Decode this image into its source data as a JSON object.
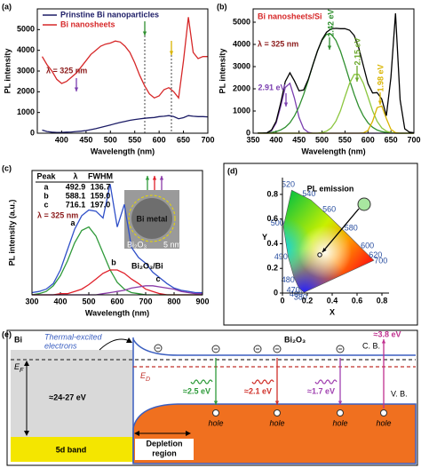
{
  "chart_data": [
    {
      "type": "line",
      "panel_label": "(a)",
      "x_label": "Wavelength (nm)",
      "y_label": "PL intensity",
      "x": [
        360,
        370,
        380,
        390,
        400,
        410,
        420,
        430,
        440,
        450,
        460,
        470,
        480,
        490,
        500,
        510,
        520,
        530,
        540,
        550,
        560,
        570,
        580,
        590,
        600,
        610,
        620,
        630,
        640,
        650,
        660,
        670,
        680,
        690,
        700
      ],
      "xlim": [
        350,
        700
      ],
      "xticks": [
        400,
        450,
        500,
        550,
        600,
        650,
        700
      ],
      "ylim": [
        0,
        6000
      ],
      "yticks": [
        0,
        1000,
        2000,
        3000,
        4000,
        5000
      ],
      "legend": "upper left",
      "series": [
        {
          "name": "Prinstine Bi nanoparticles",
          "color": "#1c1c66",
          "values": [
            150,
            80,
            50,
            40,
            40,
            50,
            60,
            80,
            100,
            130,
            170,
            220,
            280,
            340,
            400,
            460,
            520,
            570,
            620,
            660,
            690,
            720,
            740,
            760,
            800,
            820,
            850,
            800,
            700,
            750,
            850,
            820,
            800,
            800,
            790
          ]
        },
        {
          "name": "Bi nanosheets",
          "color": "#d62728",
          "values": [
            3700,
            3300,
            3000,
            2600,
            2400,
            2500,
            2700,
            2900,
            3200,
            3500,
            3800,
            4000,
            4200,
            4300,
            4350,
            4450,
            4400,
            4200,
            3900,
            3400,
            2800,
            2300,
            1900,
            1700,
            1800,
            2100,
            2200,
            2000,
            1700,
            3500,
            5600,
            3900,
            3600,
            3700,
            3700
          ]
        }
      ],
      "annotations": [
        {
          "text": "λ = 325 nm",
          "color": "#8b1a1a"
        }
      ]
    },
    {
      "type": "line",
      "panel_label": "(b)",
      "x_label": "Wavelength (nm)",
      "y_label": "PL intensity",
      "x": [
        360,
        370,
        380,
        390,
        400,
        410,
        420,
        430,
        440,
        450,
        460,
        470,
        480,
        490,
        500,
        510,
        520,
        530,
        540,
        550,
        560,
        570,
        580,
        590,
        600,
        610,
        620,
        630,
        640,
        650,
        660,
        670,
        680,
        690,
        700
      ],
      "xlim": [
        350,
        700
      ],
      "xticks": [
        350,
        400,
        450,
        500,
        550,
        600,
        650,
        700
      ],
      "ylim": [
        0,
        5600
      ],
      "yticks": [
        0,
        1000,
        2000,
        3000,
        4000,
        5000
      ],
      "series": [
        {
          "color": "#7b3fb0",
          "values": [
            0,
            0,
            0,
            110,
            460,
            1210,
            2060,
            2250,
            1580,
            710,
            200,
            40,
            0,
            0,
            0,
            0,
            0,
            0,
            0,
            0,
            0,
            0,
            0,
            0,
            0,
            0,
            0,
            0,
            0,
            0,
            0,
            0,
            0,
            0,
            0
          ]
        },
        {
          "color": "#2f8f2f",
          "values": [
            2,
            5,
            15,
            34,
            72,
            143,
            268,
            470,
            775,
            1200,
            1750,
            2390,
            3070,
            3700,
            4190,
            4460,
            4460,
            4190,
            3700,
            3070,
            2390,
            1750,
            1200,
            775,
            470,
            268,
            143,
            72,
            35,
            15,
            0,
            0,
            0,
            0,
            0
          ]
        },
        {
          "color": "#8cc63f",
          "values": [
            0,
            0,
            0,
            0,
            0,
            0,
            0,
            0,
            0,
            0,
            0,
            0,
            0,
            0,
            30,
            92,
            240,
            535,
            1010,
            1640,
            2250,
            2650,
            2650,
            2250,
            1640,
            1010,
            535,
            240,
            92,
            30,
            8,
            0,
            0,
            0,
            0
          ]
        },
        {
          "color": "#d9b400",
          "values": [
            0,
            0,
            0,
            0,
            0,
            0,
            0,
            0,
            0,
            0,
            0,
            0,
            0,
            0,
            0,
            0,
            0,
            0,
            0,
            0,
            0,
            0,
            0,
            14,
            124,
            535,
            1150,
            1230,
            660,
            176,
            24,
            0,
            0,
            0,
            0
          ]
        },
        {
          "color": "#000000",
          "values": [
            2,
            5,
            15,
            144,
            532,
            1353,
            2328,
            2720,
            2355,
            1910,
            1950,
            2430,
            3070,
            3700,
            4220,
            4552,
            4700,
            4725,
            4710,
            4710,
            4640,
            4400,
            3850,
            3039,
            2234,
            1813,
            1828,
            1542,
            787,
            2500,
            5400,
            1500,
            200,
            50,
            20
          ]
        }
      ],
      "annotations": [
        {
          "text": "Bi nanosheets/Si",
          "color": "#d62728"
        },
        {
          "text": "λ = 325 nm",
          "color": "#8b1a1a"
        },
        {
          "text": "2.91 eV",
          "color": "#7b3fb0"
        },
        {
          "text": "2.42 eV",
          "color": "#2f8f2f"
        },
        {
          "text": "2.15 eV",
          "color": "#6aa82a"
        },
        {
          "text": "1.98 eV",
          "color": "#d9b400"
        }
      ]
    },
    {
      "type": "line",
      "panel_label": "(c)",
      "x_label": "Wavelength (nm)",
      "y_label": "PL intensity (a.u.)",
      "x": [
        300,
        325,
        350,
        375,
        400,
        425,
        450,
        475,
        500,
        525,
        550,
        575,
        600,
        625,
        650,
        675,
        700,
        725,
        750,
        775,
        800,
        825,
        850,
        875,
        900
      ],
      "xlim": [
        300,
        900
      ],
      "xticks": [
        300,
        400,
        500,
        600,
        700,
        800,
        900
      ],
      "ylim": [
        0,
        110
      ],
      "series": [
        {
          "color": "#3050c8",
          "values": [
            2,
            3,
            5,
            10,
            22,
            40,
            58,
            70,
            75,
            74,
            68,
            98,
            60,
            80,
            42,
            33,
            28,
            20,
            15,
            10,
            6,
            4,
            3,
            2,
            2
          ]
        },
        {
          "name": "a",
          "color": "#2f9a3a",
          "values": [
            0,
            1,
            3,
            8,
            17,
            30,
            46,
            57,
            60,
            52,
            37,
            22,
            11,
            5,
            2,
            1,
            0,
            0,
            0,
            0,
            0,
            0,
            0,
            0,
            0
          ]
        },
        {
          "name": "b",
          "color": "#e0202a",
          "values": [
            0,
            0,
            0,
            0,
            1,
            1,
            3,
            5,
            9,
            14,
            19,
            22,
            22,
            19,
            14,
            10,
            5,
            3,
            1,
            0,
            0,
            0,
            0,
            0,
            0
          ]
        },
        {
          "name": "c",
          "color": "#8a3aa8",
          "values": [
            0,
            0,
            0,
            0,
            0,
            0,
            0,
            0,
            0,
            0,
            1,
            2,
            3,
            4,
            6,
            7,
            8,
            8,
            7,
            6,
            5,
            3,
            2,
            1,
            1
          ]
        }
      ],
      "table": {
        "header": [
          "Peak",
          "λ",
          "FWHM"
        ],
        "rows": [
          [
            "a",
            "492.9",
            "136.7"
          ],
          [
            "b",
            "588.1",
            "159.0"
          ],
          [
            "c",
            "716.1",
            "197.0"
          ]
        ]
      },
      "annotations": [
        {
          "text": "λ = 325 nm",
          "color": "#8b1a1a"
        },
        {
          "text": "Bi₂O₃/Bi",
          "color": "#000000"
        },
        {
          "text": "Bi metal",
          "color": "#111111"
        },
        {
          "text": "Bi₂O₃",
          "color": "#ffffff"
        },
        {
          "text": "5 nm",
          "color": "#ffffff"
        }
      ]
    },
    {
      "type": "cie",
      "panel_label": "(d)",
      "x_label": "X",
      "y_label": "Y",
      "xlim": [
        0,
        0.8
      ],
      "xticks": [
        0,
        0.2,
        0.4,
        0.6,
        0.8
      ],
      "ylim": [
        0,
        0.9
      ],
      "yticks": [
        0,
        0.2,
        0.4,
        0.6,
        0.8
      ],
      "locus": [
        {
          "label": "380",
          "x": 0.1741,
          "y": 0.005
        },
        {
          "label": "460",
          "x": 0.144,
          "y": 0.0297
        },
        {
          "label": "470",
          "x": 0.1241,
          "y": 0.0578
        },
        {
          "label": "480",
          "x": 0.0913,
          "y": 0.1327
        },
        {
          "label": "490",
          "x": 0.0454,
          "y": 0.295
        },
        {
          "label": "500",
          "x": 0.0082,
          "y": 0.5384
        },
        {
          "label": "520",
          "x": 0.0743,
          "y": 0.8338
        },
        {
          "label": "540",
          "x": 0.2296,
          "y": 0.7543
        },
        {
          "label": "560",
          "x": 0.3731,
          "y": 0.6245
        },
        {
          "label": "580",
          "x": 0.5125,
          "y": 0.4866
        },
        {
          "label": "600",
          "x": 0.627,
          "y": 0.3725
        },
        {
          "label": "620",
          "x": 0.6915,
          "y": 0.3083
        },
        {
          "label": "700",
          "x": 0.7347,
          "y": 0.2653
        }
      ],
      "point": {
        "x": 0.3,
        "y": 0.31
      },
      "annotations": [
        {
          "text": "PL emission",
          "color": "#000000"
        }
      ]
    }
  ],
  "diagram": {
    "panel_label": "(e)",
    "metal": "Bi",
    "thermal_electrons": [
      "Thermal-excited",
      "electrons"
    ],
    "oxide": "Bi₂O₃",
    "conduction_band": "C. B.",
    "valence_band": "V. B.",
    "fermi_level": {
      "symbol": "E",
      "sub": "F"
    },
    "defect_level": {
      "symbol": "E",
      "sub": "D"
    },
    "band_gap": "≈24-27 eV",
    "band": "5d band",
    "depletion": [
      "Depletion",
      "region"
    ],
    "transitions": [
      {
        "label": "≈2.5 eV",
        "color": "#2e9b3a"
      },
      {
        "label": "≈2.1 eV",
        "color": "#d0302a"
      },
      {
        "label": "≈1.7 eV",
        "color": "#a040b0"
      },
      {
        "label": "≈3.8 eV",
        "color": "#c0308f"
      }
    ],
    "holes": [
      "hole",
      "hole",
      "hole",
      "hole"
    ]
  }
}
